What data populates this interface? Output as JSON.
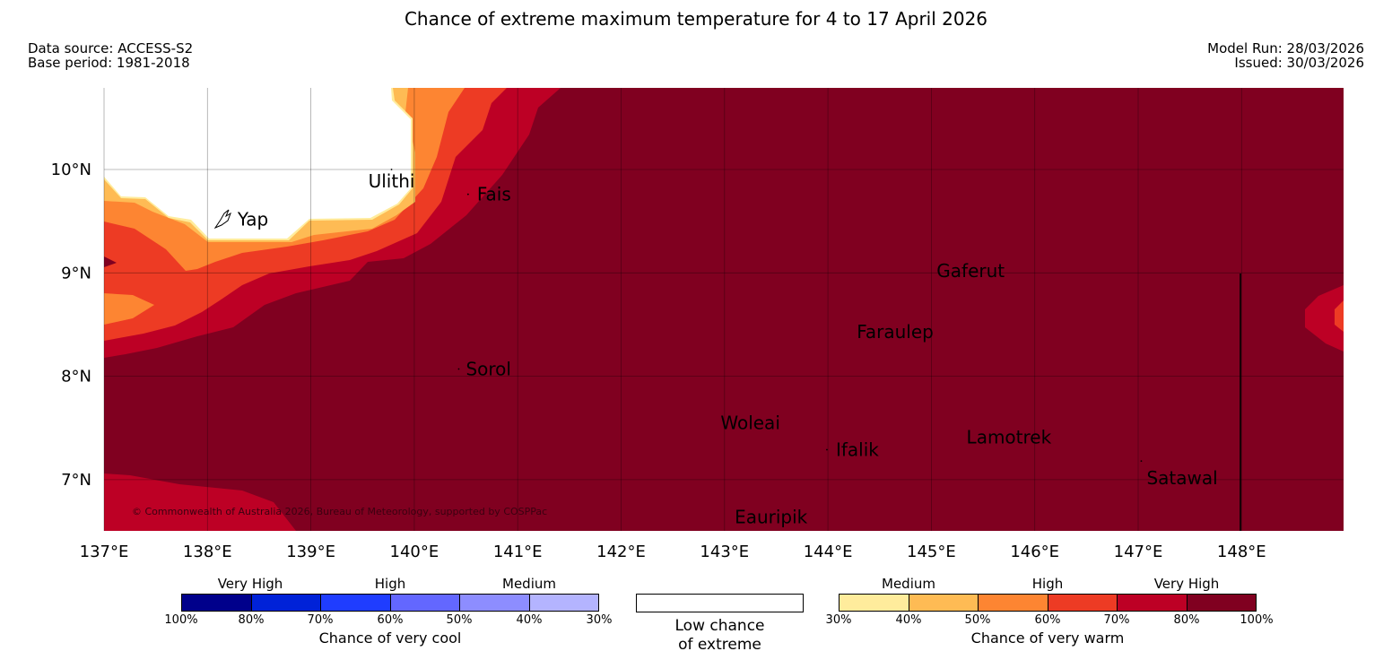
{
  "title": "Chance of extreme maximum temperature for 4 to 17 April 2026",
  "data_source": "Data source: ACCESS-S2",
  "base_period": "Base period: 1981-2018",
  "model_run": "Model Run: 28/03/2026",
  "issued": "Issued: 30/03/2026",
  "copyright": "© Commonwealth of Australia 2026, Bureau of Meteorology, supported by COSPPac",
  "map": {
    "lon_range": [
      137.0,
      149.0
    ],
    "lat_range": [
      6.5,
      10.8
    ],
    "lon_ticks": [
      137,
      138,
      139,
      140,
      141,
      142,
      143,
      144,
      145,
      146,
      147,
      148
    ],
    "lon_tick_labels": [
      "137°E",
      "138°E",
      "139°E",
      "140°E",
      "141°E",
      "142°E",
      "143°E",
      "144°E",
      "145°E",
      "146°E",
      "147°E",
      "148°E"
    ],
    "lat_ticks": [
      10,
      9,
      8,
      7
    ],
    "lat_tick_labels": [
      "10°N",
      "9°N",
      "8°N",
      "7°N"
    ],
    "places": [
      {
        "name": "Ulithi",
        "lon": 139.78,
        "lat": 10.0
      },
      {
        "name": "Fais",
        "lon": 140.52,
        "lat": 9.76
      },
      {
        "name": "Yap",
        "lon": 138.1,
        "lat": 9.52
      },
      {
        "name": "Gaferut",
        "lon": 145.38,
        "lat": 9.02
      },
      {
        "name": "Faraulep",
        "lon": 144.65,
        "lat": 8.43
      },
      {
        "name": "Sorol",
        "lon": 140.43,
        "lat": 8.07
      },
      {
        "name": "Woleai",
        "lon": 143.25,
        "lat": 7.55
      },
      {
        "name": "Ifalik",
        "lon": 143.99,
        "lat": 7.29
      },
      {
        "name": "Lamotrek",
        "lon": 145.75,
        "lat": 7.41
      },
      {
        "name": "Satawal",
        "lon": 147.03,
        "lat": 7.18
      },
      {
        "name": "Eauripik",
        "lon": 143.45,
        "lat": 6.64
      }
    ]
  },
  "legend": {
    "cool": {
      "categories": [
        "Very High",
        "High",
        "Medium"
      ],
      "colors": [
        "#00008b",
        "#0022d8",
        "#1f3dff",
        "#6367ff",
        "#8d8dff",
        "#b4b4ff"
      ],
      "ticks": [
        "100%",
        "80%",
        "70%",
        "60%",
        "50%",
        "40%",
        "30%"
      ],
      "title": "Chance of very cool"
    },
    "low": {
      "line1": "Low chance",
      "line2": "of extreme"
    },
    "warm": {
      "categories": [
        "Medium",
        "High",
        "Very High"
      ],
      "colors": [
        "#ffec9c",
        "#febb54",
        "#fd8532",
        "#ed3b24",
        "#bd0025",
        "#800020"
      ],
      "ticks": [
        "30%",
        "40%",
        "50%",
        "60%",
        "70%",
        "80%",
        "100%"
      ],
      "title": "Chance of very warm"
    }
  }
}
